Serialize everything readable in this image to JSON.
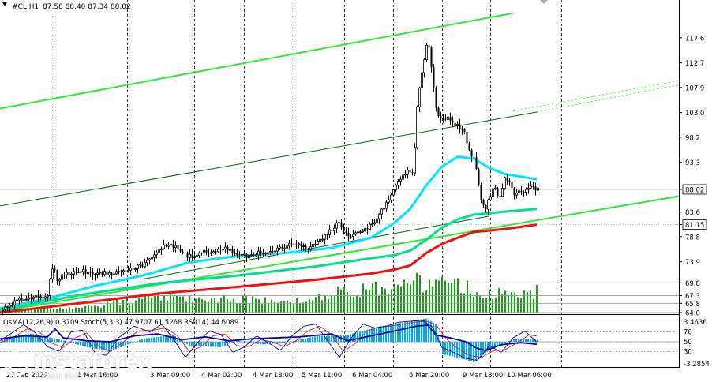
{
  "header": {
    "symbol": "#CL,H1",
    "ohlc": "87.58 88.40 87.34 88.02"
  },
  "indicator_header": "OsMA(12,26,9) 0.3709  Stoch(5,3,3) 47.9707 61.5268  RSI(14) 44.6089",
  "watermark": {
    "brand": "instaforex",
    "tagline": "Instant Forex Trading",
    "logo_icon": "instaforex-logo-icon"
  },
  "colors": {
    "candles": "#000000",
    "ema_fast": "#00e5ff",
    "ema_mid": "#00e08a",
    "ema_slow": "#ee1111",
    "channel_bright": "#33e833",
    "channel_dark": "#006600",
    "volume": "#10a010",
    "osma": "#00aaee",
    "stoch_main": "#0000aa",
    "stoch_signal": "#cc2222"
  },
  "chart_data": {
    "type": "candlestick",
    "ylim": [
      64.0,
      122.5
    ],
    "y_ticks": [
      117.6,
      112.7,
      107.9,
      103.0,
      98.2,
      93.3,
      88.02,
      83.6,
      81.15,
      78.8,
      73.9,
      69.8,
      67.3,
      65.8,
      64.0
    ],
    "highlighted_prices": [
      {
        "label": "88.02",
        "value": 88.02
      },
      {
        "label": "81.15",
        "value": 81.15
      }
    ],
    "x_tick_labels": [
      "27 Feb 2022",
      "1 Mar 16:00",
      "3 Mar 09:00",
      "4 Mar 02:00",
      "4 Mar 18:00",
      "5 Mar 11:00",
      "6 Mar 04:00",
      "6 Mar 20:00",
      "9 Mar 13:00",
      "10 Mar 06:00"
    ],
    "price_anchors": [
      [
        0,
        64.4
      ],
      [
        12,
        65.3
      ],
      [
        25,
        66.5
      ],
      [
        45,
        67.0
      ],
      [
        60,
        67.3
      ],
      [
        67,
        73.8
      ],
      [
        72,
        70.2
      ],
      [
        82,
        71.5
      ],
      [
        100,
        72.2
      ],
      [
        120,
        71.6
      ],
      [
        140,
        71.8
      ],
      [
        160,
        72.5
      ],
      [
        180,
        73.2
      ],
      [
        195,
        75.0
      ],
      [
        205,
        77.0
      ],
      [
        215,
        77.5
      ],
      [
        225,
        76.3
      ],
      [
        238,
        74.8
      ],
      [
        252,
        75.6
      ],
      [
        268,
        75.9
      ],
      [
        285,
        76.5
      ],
      [
        300,
        75.4
      ],
      [
        315,
        74.8
      ],
      [
        330,
        75.8
      ],
      [
        345,
        76.2
      ],
      [
        360,
        76.8
      ],
      [
        375,
        77.4
      ],
      [
        390,
        76.5
      ],
      [
        405,
        78.0
      ],
      [
        418,
        80.0
      ],
      [
        428,
        81.5
      ],
      [
        435,
        79.4
      ],
      [
        445,
        79.1
      ],
      [
        458,
        80.0
      ],
      [
        470,
        81.0
      ],
      [
        482,
        83.5
      ],
      [
        495,
        87.0
      ],
      [
        505,
        89.5
      ],
      [
        515,
        91.5
      ],
      [
        523,
        90.8
      ],
      [
        528,
        104.5
      ],
      [
        536,
        113.0
      ],
      [
        542,
        117.5
      ],
      [
        548,
        109.0
      ],
      [
        553,
        103.0
      ],
      [
        558,
        101.5
      ],
      [
        565,
        102.0
      ],
      [
        572,
        101.0
      ],
      [
        580,
        100.5
      ],
      [
        588,
        99.0
      ],
      [
        595,
        95.0
      ],
      [
        602,
        93.5
      ],
      [
        608,
        86.0
      ],
      [
        614,
        84.0
      ],
      [
        620,
        86.5
      ],
      [
        626,
        88.5
      ],
      [
        632,
        85.5
      ],
      [
        638,
        90.0
      ],
      [
        645,
        89.5
      ],
      [
        652,
        86.5
      ],
      [
        658,
        88.0
      ],
      [
        665,
        87.5
      ],
      [
        672,
        89.0
      ],
      [
        678,
        88.0
      ],
      [
        681,
        88.02
      ]
    ],
    "ema_fast_anchors": [
      [
        0,
        64.8
      ],
      [
        60,
        66.7
      ],
      [
        120,
        69.2
      ],
      [
        180,
        71.2
      ],
      [
        240,
        73.8
      ],
      [
        300,
        75.0
      ],
      [
        360,
        75.6
      ],
      [
        420,
        76.6
      ],
      [
        470,
        78.6
      ],
      [
        500,
        81.5
      ],
      [
        520,
        84.3
      ],
      [
        540,
        88.8
      ],
      [
        560,
        92.5
      ],
      [
        580,
        94.4
      ],
      [
        600,
        94.0
      ],
      [
        620,
        92.2
      ],
      [
        640,
        91.0
      ],
      [
        660,
        90.5
      ],
      [
        680,
        90.0
      ]
    ],
    "ema_mid_anchors": [
      [
        0,
        64.5
      ],
      [
        100,
        67.4
      ],
      [
        200,
        69.7
      ],
      [
        300,
        71.2
      ],
      [
        400,
        73.0
      ],
      [
        470,
        74.6
      ],
      [
        500,
        75.2
      ],
      [
        520,
        76.1
      ],
      [
        540,
        78.2
      ],
      [
        560,
        80.6
      ],
      [
        580,
        82.2
      ],
      [
        600,
        83.1
      ],
      [
        640,
        83.7
      ],
      [
        680,
        84.2
      ]
    ],
    "ema_slow_anchors": [
      [
        0,
        64.0
      ],
      [
        100,
        65.8
      ],
      [
        200,
        67.7
      ],
      [
        300,
        69.0
      ],
      [
        400,
        70.4
      ],
      [
        470,
        71.6
      ],
      [
        500,
        72.4
      ],
      [
        520,
        73.2
      ],
      [
        540,
        75.6
      ],
      [
        560,
        77.4
      ],
      [
        580,
        78.6
      ],
      [
        600,
        79.7
      ],
      [
        640,
        80.3
      ],
      [
        680,
        81.15
      ]
    ],
    "channel_lines": [
      {
        "name": "upper",
        "style": "bright",
        "x_from": 0,
        "x_to": 650,
        "y_from": 103.8,
        "y_to": 122.4
      },
      {
        "name": "upper-extension",
        "style": "bright-dotted",
        "x_from": 650,
        "x_to": 860,
        "y_from": 103.3,
        "y_to": 109.2
      },
      {
        "name": "middle",
        "style": "dark",
        "x_from": 0,
        "x_to": 680,
        "y_from": 84.8,
        "y_to": 103.1
      },
      {
        "name": "middle-extension",
        "style": "bright-dotted",
        "x_from": 680,
        "x_to": 860,
        "y_from": 103.1,
        "y_to": 108.4
      },
      {
        "name": "lower",
        "style": "bright",
        "x_from": 0,
        "x_to": 860,
        "y_from": 64.2,
        "y_to": 86.7
      },
      {
        "name": "lower-dark",
        "style": "dark",
        "x_from": 180,
        "x_to": 620,
        "y_from": 70.5,
        "y_to": 82.8
      }
    ],
    "volume_anchors": [
      [
        0,
        2
      ],
      [
        60,
        7
      ],
      [
        100,
        6
      ],
      [
        180,
        20
      ],
      [
        200,
        26
      ],
      [
        240,
        22
      ],
      [
        300,
        20
      ],
      [
        360,
        16
      ],
      [
        400,
        22
      ],
      [
        420,
        28
      ],
      [
        460,
        32
      ],
      [
        480,
        36
      ],
      [
        500,
        40
      ],
      [
        520,
        42
      ],
      [
        530,
        44
      ],
      [
        560,
        40
      ],
      [
        580,
        38
      ],
      [
        600,
        34
      ],
      [
        620,
        28
      ],
      [
        660,
        26
      ],
      [
        680,
        32
      ]
    ],
    "osma_anchors": [
      [
        0,
        0.5
      ],
      [
        40,
        1.2
      ],
      [
        80,
        0.2
      ],
      [
        110,
        -0.8
      ],
      [
        140,
        -1.4
      ],
      [
        180,
        0.4
      ],
      [
        220,
        1.0
      ],
      [
        240,
        -0.6
      ],
      [
        280,
        -0.8
      ],
      [
        300,
        0.2
      ],
      [
        330,
        -0.4
      ],
      [
        360,
        -0.2
      ],
      [
        400,
        0.8
      ],
      [
        440,
        1.0
      ],
      [
        480,
        2.2
      ],
      [
        510,
        2.8
      ],
      [
        540,
        3.4
      ],
      [
        552,
        2.6
      ],
      [
        560,
        -1.8
      ],
      [
        590,
        -2.6
      ],
      [
        600,
        -3.0
      ],
      [
        620,
        -1.2
      ],
      [
        650,
        0.4
      ],
      [
        680,
        0.37
      ]
    ],
    "stoch_main_anchors": [
      [
        0,
        52
      ],
      [
        15,
        68
      ],
      [
        30,
        85
      ],
      [
        45,
        68
      ],
      [
        60,
        40
      ],
      [
        75,
        30
      ],
      [
        90,
        70
      ],
      [
        105,
        74
      ],
      [
        120,
        28
      ],
      [
        135,
        22
      ],
      [
        150,
        58
      ],
      [
        170,
        82
      ],
      [
        190,
        70
      ],
      [
        205,
        86
      ],
      [
        220,
        55
      ],
      [
        235,
        18
      ],
      [
        250,
        48
      ],
      [
        265,
        72
      ],
      [
        280,
        65
      ],
      [
        295,
        28
      ],
      [
        310,
        40
      ],
      [
        325,
        62
      ],
      [
        340,
        48
      ],
      [
        355,
        32
      ],
      [
        370,
        62
      ],
      [
        385,
        82
      ],
      [
        400,
        86
      ],
      [
        415,
        52
      ],
      [
        430,
        18
      ],
      [
        445,
        58
      ],
      [
        460,
        86
      ],
      [
        475,
        78
      ],
      [
        490,
        82
      ],
      [
        505,
        90
      ],
      [
        520,
        92
      ],
      [
        535,
        94
      ],
      [
        548,
        80
      ],
      [
        560,
        38
      ],
      [
        575,
        28
      ],
      [
        590,
        16
      ],
      [
        605,
        12
      ],
      [
        620,
        42
      ],
      [
        635,
        28
      ],
      [
        650,
        58
      ],
      [
        665,
        72
      ],
      [
        681,
        47.97
      ]
    ],
    "stoch_signal_anchors": [
      [
        0,
        48
      ],
      [
        18,
        60
      ],
      [
        34,
        76
      ],
      [
        50,
        70
      ],
      [
        64,
        48
      ],
      [
        80,
        38
      ],
      [
        95,
        58
      ],
      [
        110,
        68
      ],
      [
        125,
        40
      ],
      [
        140,
        30
      ],
      [
        155,
        48
      ],
      [
        175,
        72
      ],
      [
        195,
        74
      ],
      [
        210,
        78
      ],
      [
        225,
        62
      ],
      [
        240,
        30
      ],
      [
        255,
        40
      ],
      [
        270,
        62
      ],
      [
        285,
        66
      ],
      [
        300,
        42
      ],
      [
        315,
        40
      ],
      [
        330,
        54
      ],
      [
        345,
        50
      ],
      [
        360,
        40
      ],
      [
        375,
        52
      ],
      [
        390,
        72
      ],
      [
        405,
        82
      ],
      [
        420,
        64
      ],
      [
        435,
        30
      ],
      [
        450,
        46
      ],
      [
        465,
        72
      ],
      [
        480,
        80
      ],
      [
        495,
        82
      ],
      [
        510,
        86
      ],
      [
        525,
        90
      ],
      [
        540,
        92
      ],
      [
        552,
        86
      ],
      [
        565,
        56
      ],
      [
        580,
        36
      ],
      [
        595,
        22
      ],
      [
        610,
        18
      ],
      [
        625,
        32
      ],
      [
        640,
        34
      ],
      [
        655,
        48
      ],
      [
        670,
        64
      ],
      [
        681,
        61.53
      ]
    ],
    "rsi_anchors": [
      [
        0,
        56
      ],
      [
        30,
        62
      ],
      [
        60,
        60
      ],
      [
        70,
        76
      ],
      [
        80,
        58
      ],
      [
        110,
        52
      ],
      [
        140,
        50
      ],
      [
        170,
        62
      ],
      [
        200,
        66
      ],
      [
        230,
        54
      ],
      [
        260,
        60
      ],
      [
        290,
        52
      ],
      [
        320,
        56
      ],
      [
        350,
        58
      ],
      [
        380,
        60
      ],
      [
        420,
        66
      ],
      [
        440,
        52
      ],
      [
        470,
        62
      ],
      [
        500,
        72
      ],
      [
        528,
        82
      ],
      [
        542,
        84
      ],
      [
        552,
        64
      ],
      [
        570,
        58
      ],
      [
        590,
        50
      ],
      [
        605,
        36
      ],
      [
        615,
        32
      ],
      [
        635,
        44
      ],
      [
        660,
        48
      ],
      [
        681,
        44.61
      ]
    ],
    "indicator_ticks": [
      "3.4636",
      "70",
      "50",
      "30",
      "-3.2854"
    ]
  }
}
